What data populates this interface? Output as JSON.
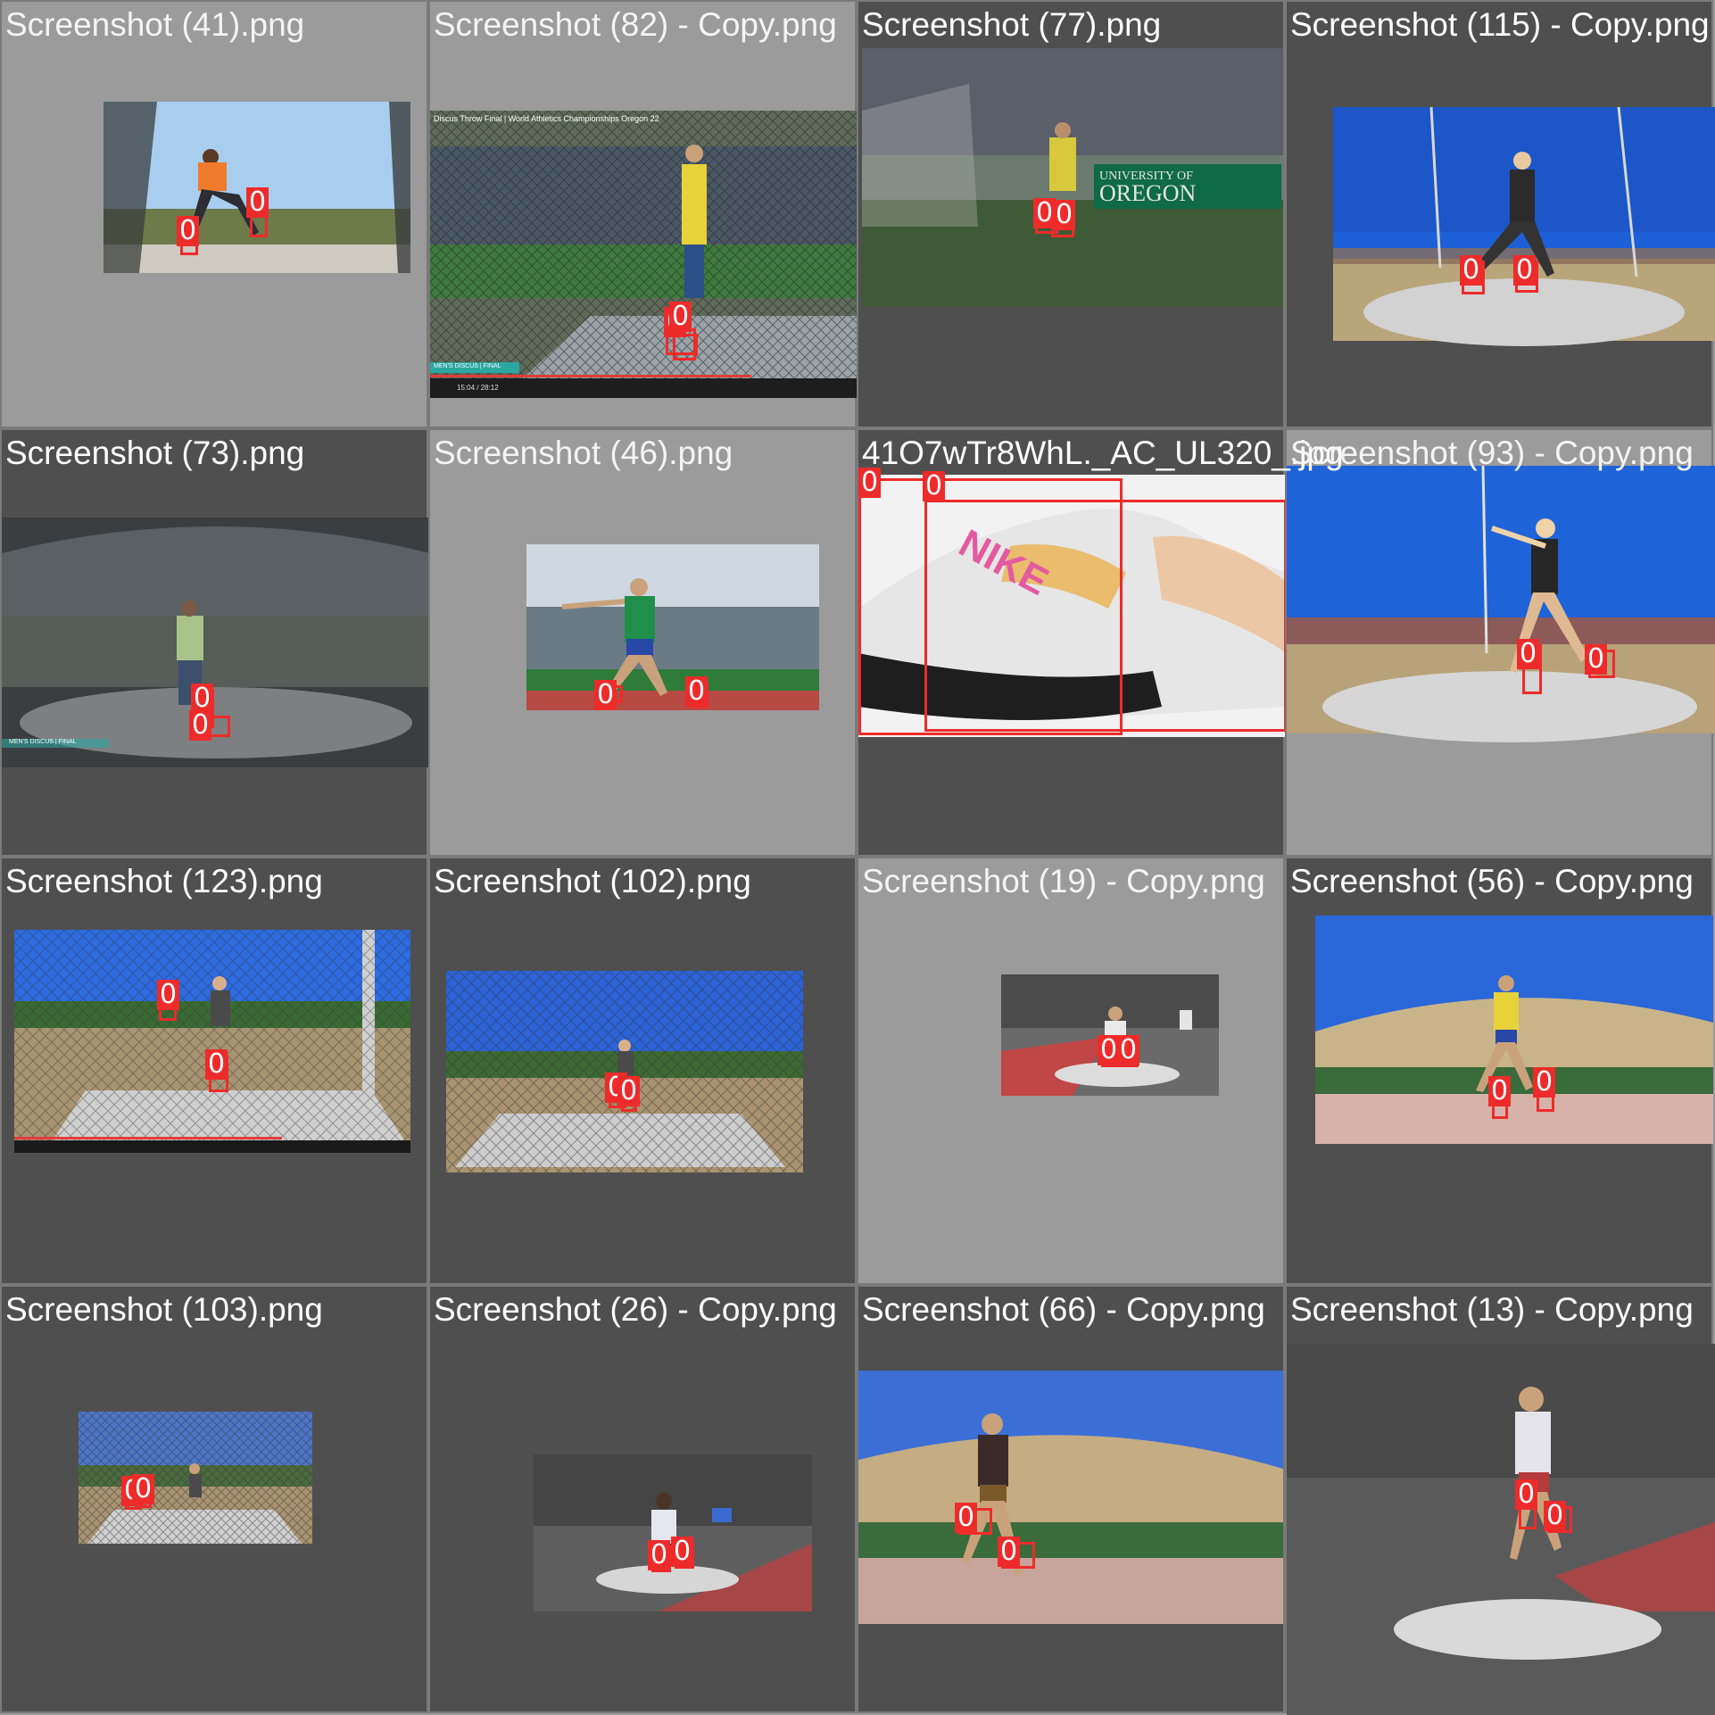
{
  "tiles": [
    {
      "caption": "Screenshot (41).png",
      "labels": [
        "0",
        "0"
      ]
    },
    {
      "caption": "Screenshot (82) - Copy.png",
      "labels": [
        "0",
        "0"
      ],
      "overlay_title": "Discus Throw Final | World Athletics Championships Oregon 22",
      "overlay_tag": "MEN'S DISCUS | FINAL",
      "overlay_time": "15:04 / 28:12"
    },
    {
      "caption": "Screenshot (77).png",
      "labels": [
        "0",
        "0"
      ],
      "banner_line1": "UNIVERSITY OF",
      "banner_line2": "OREGON"
    },
    {
      "caption": "Screenshot (115) - Copy.png",
      "labels": [
        "0",
        "0"
      ]
    },
    {
      "caption": "Screenshot (73).png",
      "labels": [
        "0",
        "0"
      ],
      "overlay_tag": "MEN'S DISCUS | FINAL"
    },
    {
      "caption": "Screenshot (46).png",
      "labels": [
        "0",
        "0"
      ]
    },
    {
      "caption": "41O7wTr8WhL._AC_UL320_.jpg",
      "labels": [
        "0",
        "0"
      ],
      "brand": "NIKE"
    },
    {
      "caption": "Screenshot (93) - Copy.png",
      "labels": [
        "0",
        "0"
      ]
    },
    {
      "caption": "Screenshot (123).png",
      "labels": [
        "0",
        "0"
      ]
    },
    {
      "caption": "Screenshot (102).png",
      "labels": [
        "0",
        "0"
      ]
    },
    {
      "caption": "Screenshot (19) - Copy.png",
      "labels": [
        "0",
        "0"
      ]
    },
    {
      "caption": "Screenshot (56) - Copy.png",
      "labels": [
        "0",
        "0"
      ]
    },
    {
      "caption": "Screenshot (103).png",
      "labels": [
        "0",
        "0"
      ]
    },
    {
      "caption": "Screenshot (26) - Copy.png",
      "labels": [
        "0",
        "0"
      ]
    },
    {
      "caption": "Screenshot (66) - Copy.png",
      "labels": [
        "0",
        "0"
      ]
    },
    {
      "caption": "Screenshot (13) - Copy.png",
      "labels": [
        "0",
        "0"
      ]
    }
  ]
}
